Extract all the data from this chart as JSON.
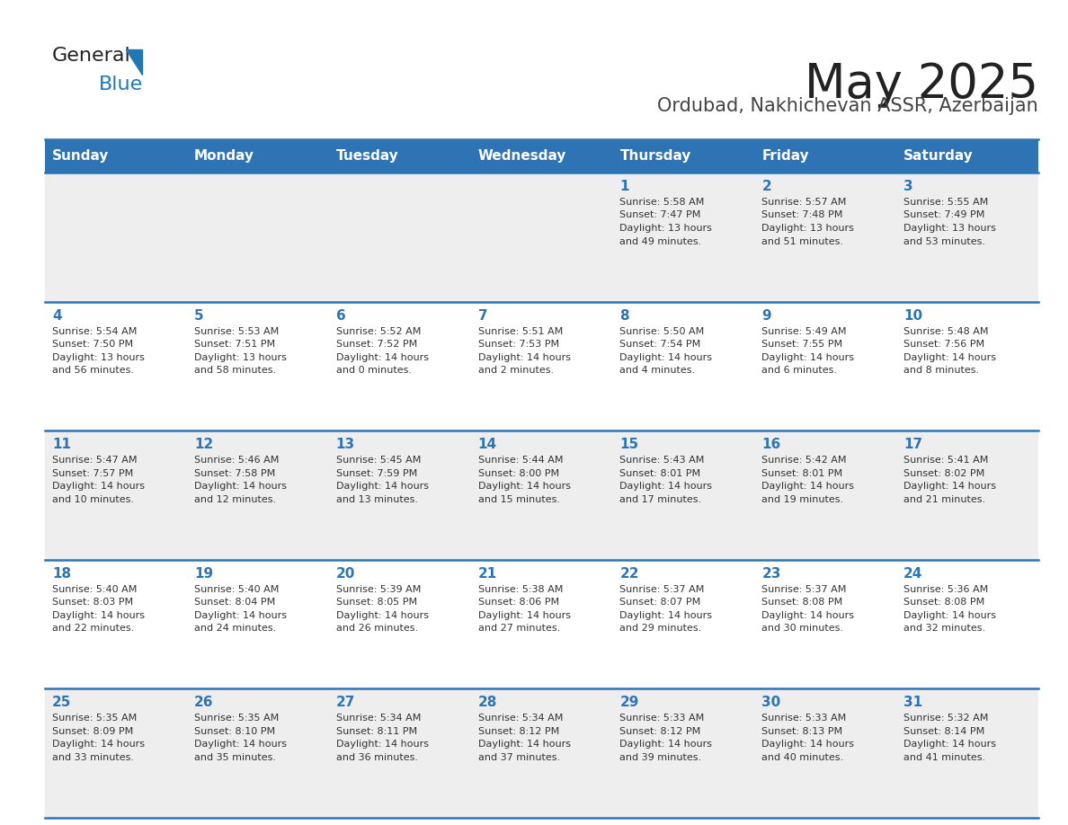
{
  "title": "May 2025",
  "subtitle": "Ordubad, Nakhichevan ASSR, Azerbaijan",
  "header_color": "#2E74B5",
  "header_text_color": "#FFFFFF",
  "cell_bg_row0": "#EEEEEE",
  "cell_bg_row1": "#FFFFFF",
  "cell_bg_row2": "#EEEEEE",
  "cell_bg_row3": "#FFFFFF",
  "cell_bg_row4": "#EEEEEE",
  "day_headers": [
    "Sunday",
    "Monday",
    "Tuesday",
    "Wednesday",
    "Thursday",
    "Friday",
    "Saturday"
  ],
  "title_color": "#222222",
  "subtitle_color": "#444444",
  "day_number_color": "#2E74B5",
  "text_color": "#333333",
  "logo_general_color": "#222222",
  "logo_blue_color": "#2278B5",
  "border_color": "#2E74B5",
  "calendar": [
    [
      null,
      null,
      null,
      null,
      {
        "day": 1,
        "sunrise": "5:58 AM",
        "sunset": "7:47 PM",
        "daylight": "13 hours and 49 minutes."
      },
      {
        "day": 2,
        "sunrise": "5:57 AM",
        "sunset": "7:48 PM",
        "daylight": "13 hours and 51 minutes."
      },
      {
        "day": 3,
        "sunrise": "5:55 AM",
        "sunset": "7:49 PM",
        "daylight": "13 hours and 53 minutes."
      }
    ],
    [
      {
        "day": 4,
        "sunrise": "5:54 AM",
        "sunset": "7:50 PM",
        "daylight": "13 hours and 56 minutes."
      },
      {
        "day": 5,
        "sunrise": "5:53 AM",
        "sunset": "7:51 PM",
        "daylight": "13 hours and 58 minutes."
      },
      {
        "day": 6,
        "sunrise": "5:52 AM",
        "sunset": "7:52 PM",
        "daylight": "14 hours and 0 minutes."
      },
      {
        "day": 7,
        "sunrise": "5:51 AM",
        "sunset": "7:53 PM",
        "daylight": "14 hours and 2 minutes."
      },
      {
        "day": 8,
        "sunrise": "5:50 AM",
        "sunset": "7:54 PM",
        "daylight": "14 hours and 4 minutes."
      },
      {
        "day": 9,
        "sunrise": "5:49 AM",
        "sunset": "7:55 PM",
        "daylight": "14 hours and 6 minutes."
      },
      {
        "day": 10,
        "sunrise": "5:48 AM",
        "sunset": "7:56 PM",
        "daylight": "14 hours and 8 minutes."
      }
    ],
    [
      {
        "day": 11,
        "sunrise": "5:47 AM",
        "sunset": "7:57 PM",
        "daylight": "14 hours and 10 minutes."
      },
      {
        "day": 12,
        "sunrise": "5:46 AM",
        "sunset": "7:58 PM",
        "daylight": "14 hours and 12 minutes."
      },
      {
        "day": 13,
        "sunrise": "5:45 AM",
        "sunset": "7:59 PM",
        "daylight": "14 hours and 13 minutes."
      },
      {
        "day": 14,
        "sunrise": "5:44 AM",
        "sunset": "8:00 PM",
        "daylight": "14 hours and 15 minutes."
      },
      {
        "day": 15,
        "sunrise": "5:43 AM",
        "sunset": "8:01 PM",
        "daylight": "14 hours and 17 minutes."
      },
      {
        "day": 16,
        "sunrise": "5:42 AM",
        "sunset": "8:01 PM",
        "daylight": "14 hours and 19 minutes."
      },
      {
        "day": 17,
        "sunrise": "5:41 AM",
        "sunset": "8:02 PM",
        "daylight": "14 hours and 21 minutes."
      }
    ],
    [
      {
        "day": 18,
        "sunrise": "5:40 AM",
        "sunset": "8:03 PM",
        "daylight": "14 hours and 22 minutes."
      },
      {
        "day": 19,
        "sunrise": "5:40 AM",
        "sunset": "8:04 PM",
        "daylight": "14 hours and 24 minutes."
      },
      {
        "day": 20,
        "sunrise": "5:39 AM",
        "sunset": "8:05 PM",
        "daylight": "14 hours and 26 minutes."
      },
      {
        "day": 21,
        "sunrise": "5:38 AM",
        "sunset": "8:06 PM",
        "daylight": "14 hours and 27 minutes."
      },
      {
        "day": 22,
        "sunrise": "5:37 AM",
        "sunset": "8:07 PM",
        "daylight": "14 hours and 29 minutes."
      },
      {
        "day": 23,
        "sunrise": "5:37 AM",
        "sunset": "8:08 PM",
        "daylight": "14 hours and 30 minutes."
      },
      {
        "day": 24,
        "sunrise": "5:36 AM",
        "sunset": "8:08 PM",
        "daylight": "14 hours and 32 minutes."
      }
    ],
    [
      {
        "day": 25,
        "sunrise": "5:35 AM",
        "sunset": "8:09 PM",
        "daylight": "14 hours and 33 minutes."
      },
      {
        "day": 26,
        "sunrise": "5:35 AM",
        "sunset": "8:10 PM",
        "daylight": "14 hours and 35 minutes."
      },
      {
        "day": 27,
        "sunrise": "5:34 AM",
        "sunset": "8:11 PM",
        "daylight": "14 hours and 36 minutes."
      },
      {
        "day": 28,
        "sunrise": "5:34 AM",
        "sunset": "8:12 PM",
        "daylight": "14 hours and 37 minutes."
      },
      {
        "day": 29,
        "sunrise": "5:33 AM",
        "sunset": "8:12 PM",
        "daylight": "14 hours and 39 minutes."
      },
      {
        "day": 30,
        "sunrise": "5:33 AM",
        "sunset": "8:13 PM",
        "daylight": "14 hours and 40 minutes."
      },
      {
        "day": 31,
        "sunrise": "5:32 AM",
        "sunset": "8:14 PM",
        "daylight": "14 hours and 41 minutes."
      }
    ]
  ]
}
